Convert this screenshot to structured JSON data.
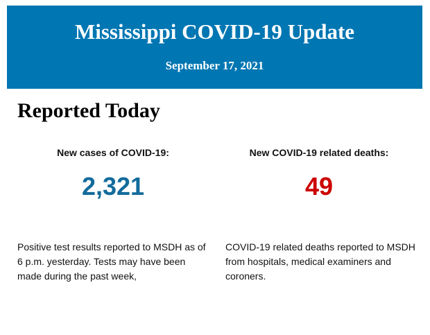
{
  "header": {
    "title": "Mississippi COVID-19 Update",
    "date": "September 17, 2021",
    "background": "#0076b2"
  },
  "section_title": "Reported Today",
  "cases": {
    "label": "New cases of COVID-19:",
    "value": "2,321",
    "color": "#136b9c",
    "description": "Positive test results reported to MSDH as of 6 p.m. yesterday. Tests may have been made during the past week,"
  },
  "deaths": {
    "label": "New COVID-19 related deaths:",
    "value": "49",
    "color": "#cc0000",
    "description": "COVID-19 related deaths reported to MSDH from hospitals, medical examiners and coroners."
  }
}
